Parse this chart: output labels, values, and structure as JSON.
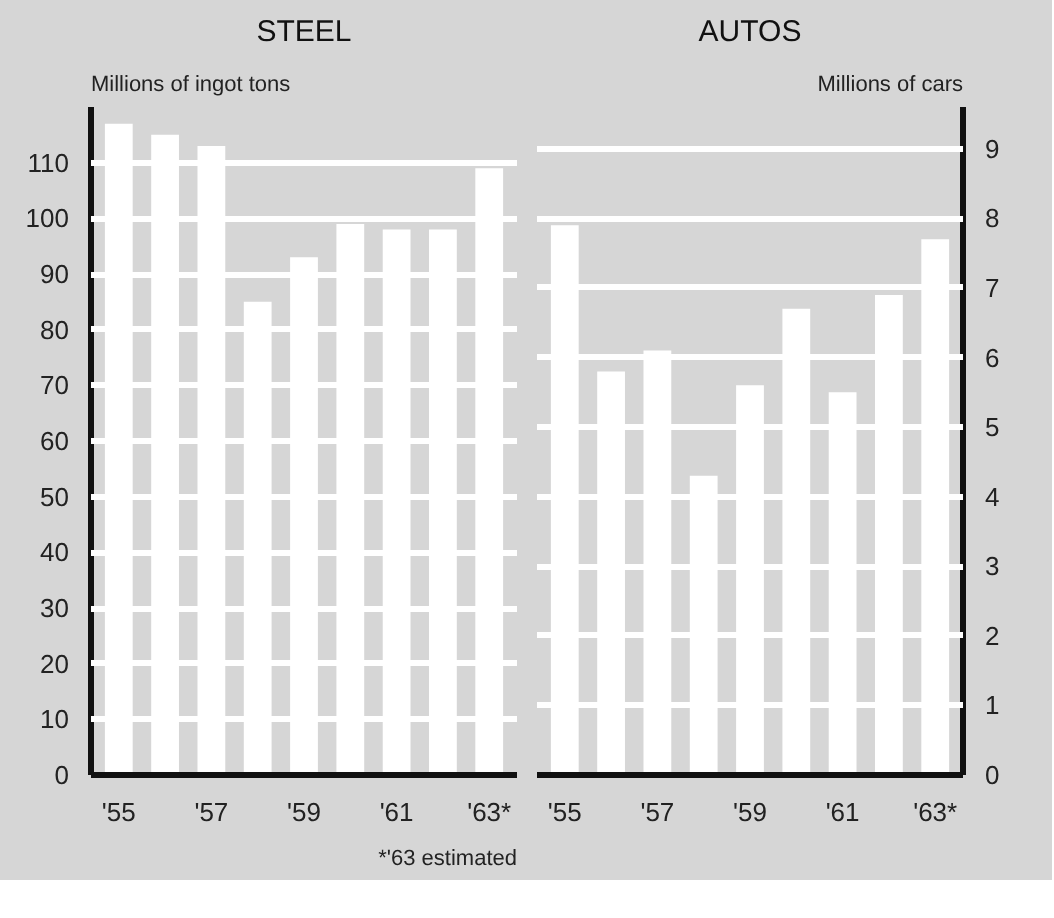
{
  "chart_data": [
    {
      "type": "bar",
      "title": "STEEL",
      "ylabel": "Millions of ingot tons",
      "categories": [
        "'55",
        null,
        "'57",
        null,
        "'59",
        null,
        "'61",
        null,
        "'63*"
      ],
      "series": [
        {
          "color": "#ffffff",
          "values": [
            117,
            115,
            113,
            85,
            93,
            99,
            98,
            98,
            109
          ]
        }
      ],
      "ylim": [
        0,
        120
      ],
      "yticks": [
        0,
        10,
        20,
        30,
        40,
        50,
        60,
        70,
        80,
        90,
        100,
        110
      ],
      "grid": "y",
      "annotations": [
        "*'63 estimated"
      ]
    },
    {
      "type": "bar",
      "title": "AUTOS",
      "y2label": "Millions of cars",
      "categories": [
        "'55",
        null,
        "'57",
        null,
        "'59",
        null,
        "'61",
        null,
        "'63*"
      ],
      "series": [
        {
          "color": "#ffffff",
          "axis": "y2",
          "values": [
            7.9,
            5.8,
            6.1,
            4.3,
            5.6,
            6.7,
            5.5,
            6.9,
            7.7
          ]
        }
      ],
      "y2lim": [
        0,
        9.6
      ],
      "y2ticks": [
        0,
        1,
        2,
        3,
        4,
        5,
        6,
        7,
        8,
        9
      ],
      "grid": "y"
    }
  ]
}
